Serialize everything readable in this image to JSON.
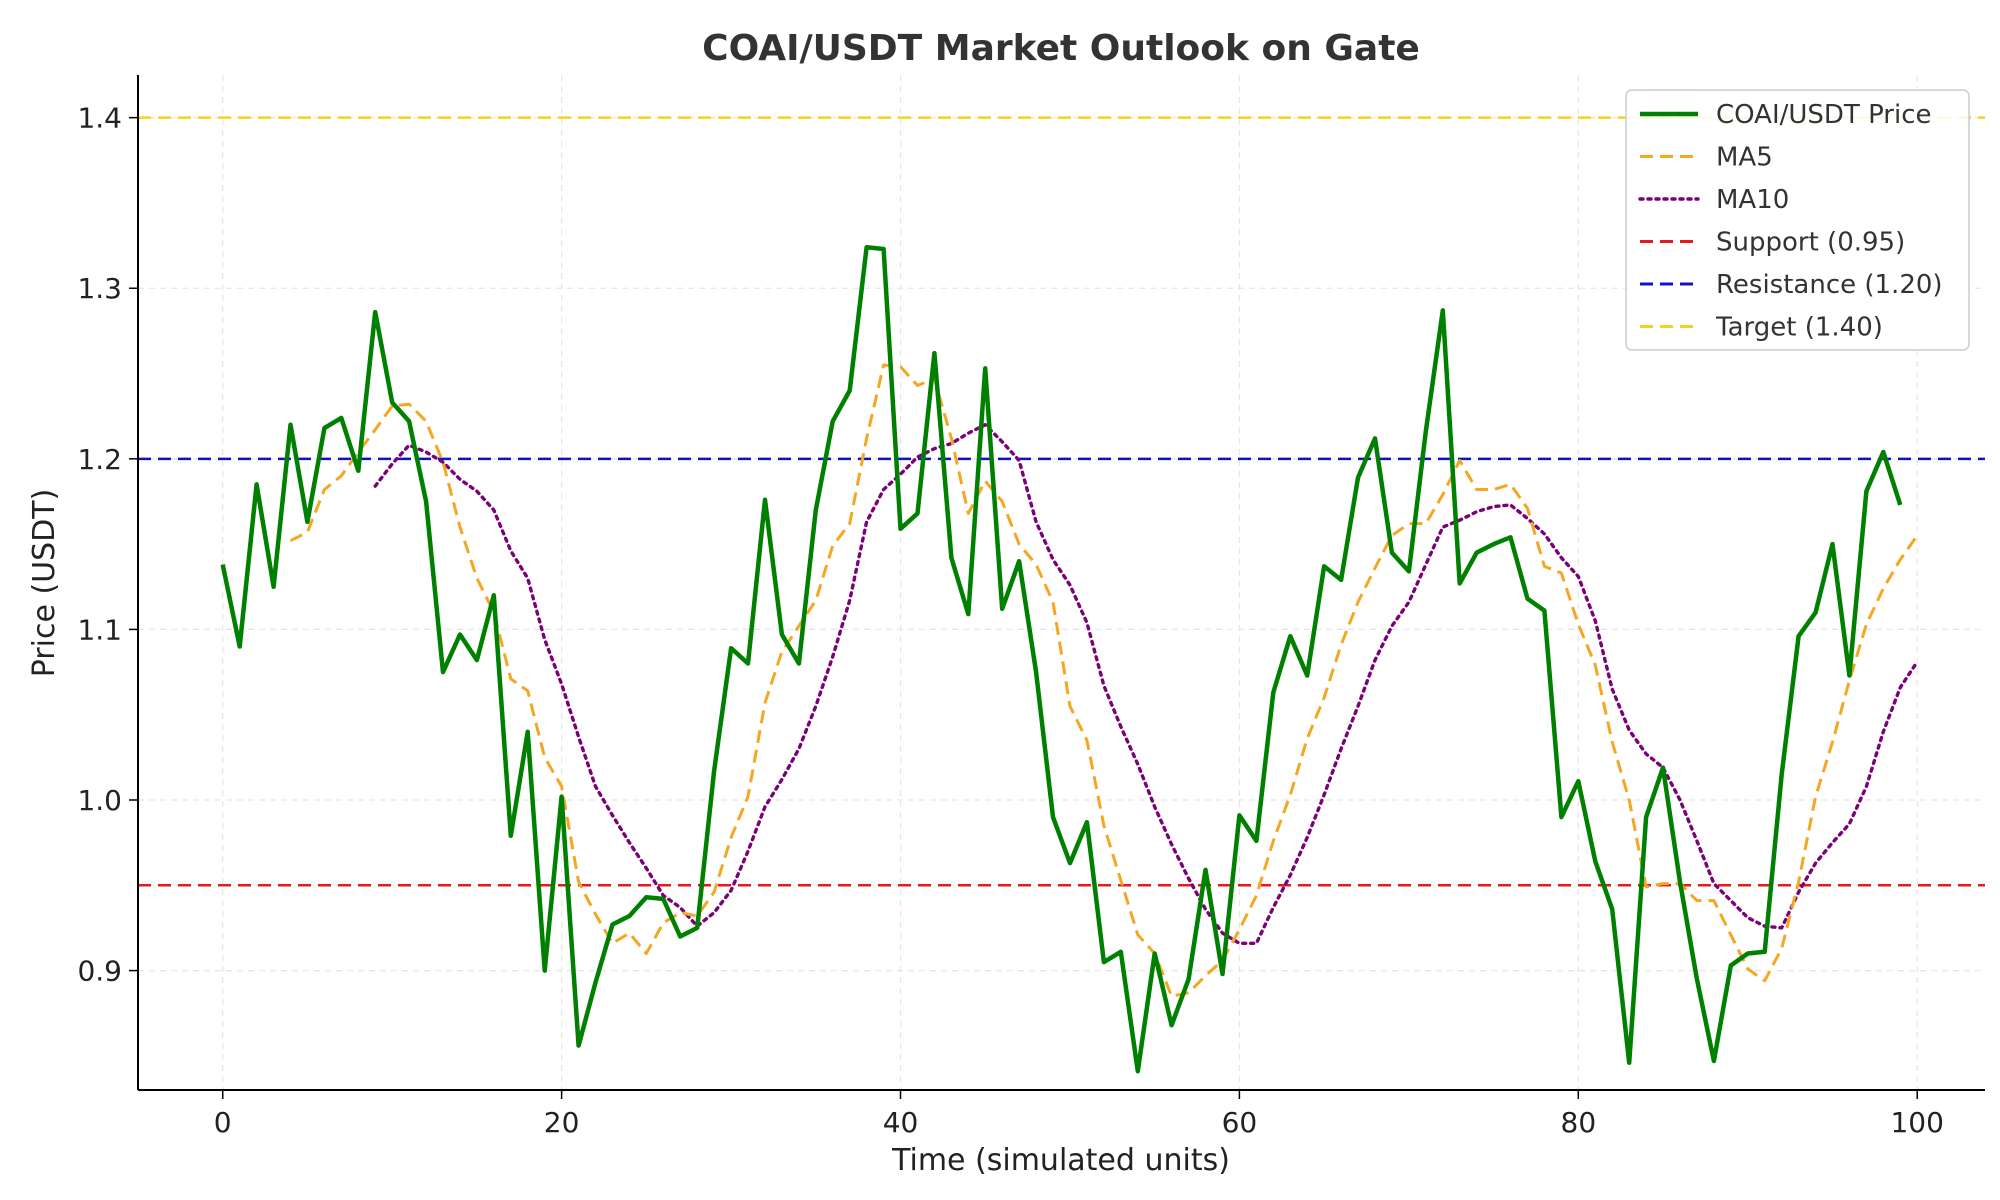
{
  "chart_data": {
    "type": "line",
    "title": "COAI/USDT Market Outlook on Gate",
    "xlabel": "Time (simulated units)",
    "ylabel": "Price (USDT)",
    "xlim": [
      -5,
      104
    ],
    "ylim": [
      0.83,
      1.425
    ],
    "xticks": [
      "0",
      "20",
      "40",
      "60",
      "80",
      "100"
    ],
    "xtick_values": [
      0,
      20,
      40,
      60,
      80,
      100
    ],
    "yticks": [
      "0.9",
      "1.0",
      "1.1",
      "1.2",
      "1.3",
      "1.4"
    ],
    "ytick_values": [
      0.9,
      1.0,
      1.1,
      1.2,
      1.3,
      1.4
    ],
    "grid": true,
    "legend_position": "top-right",
    "series": [
      {
        "name": "COAI/USDT Price",
        "color": "#008000",
        "style": "solid",
        "x_start": 0,
        "values": [
          1.138,
          1.09,
          1.185,
          1.125,
          1.22,
          1.163,
          1.218,
          1.224,
          1.193,
          1.286,
          1.233,
          1.222,
          1.175,
          1.075,
          1.097,
          1.082,
          1.12,
          0.979,
          1.04,
          0.9,
          1.002,
          0.856,
          0.893,
          0.927,
          0.932,
          0.943,
          0.942,
          0.92,
          0.925,
          1.017,
          1.089,
          1.08,
          1.176,
          1.097,
          1.08,
          1.17,
          1.222,
          1.24,
          1.324,
          1.323,
          1.159,
          1.168,
          1.262,
          1.142,
          1.109,
          1.253,
          1.112,
          1.14,
          1.075,
          0.99,
          0.963,
          0.987,
          0.905,
          0.911,
          0.841,
          0.91,
          0.868,
          0.895,
          0.959,
          0.898,
          0.991,
          0.976,
          1.063,
          1.096,
          1.073,
          1.137,
          1.129,
          1.189,
          1.212,
          1.145,
          1.134,
          1.216,
          1.287,
          1.127,
          1.145,
          1.15,
          1.154,
          1.118,
          1.111,
          0.99,
          1.011,
          0.964,
          0.936,
          0.846,
          0.99,
          1.019,
          0.952,
          0.895,
          0.847,
          0.903,
          0.91,
          0.911,
          1.015,
          1.096,
          1.11,
          1.15,
          1.073,
          1.181,
          1.204,
          1.173
        ]
      },
      {
        "name": "MA5",
        "color": "#f5a623",
        "style": "dashed",
        "x_start": 4,
        "values": [
          1.152,
          1.157,
          1.182,
          1.19,
          1.204,
          1.217,
          1.231,
          1.232,
          1.222,
          1.198,
          1.16,
          1.13,
          1.11,
          1.071,
          1.064,
          1.025,
          1.008,
          0.952,
          0.933,
          0.916,
          0.922,
          0.91,
          0.928,
          0.934,
          0.932,
          0.946,
          0.978,
          1.002,
          1.057,
          1.087,
          1.102,
          1.117,
          1.149,
          1.162,
          1.212,
          1.255,
          1.254,
          1.243,
          1.247,
          1.212,
          1.168,
          1.187,
          1.175,
          1.15,
          1.138,
          1.116,
          1.055,
          1.035,
          0.985,
          0.953,
          0.921,
          0.91,
          0.885,
          0.887,
          0.897,
          0.906,
          0.924,
          0.944,
          0.976,
          1.003,
          1.036,
          1.06,
          1.091,
          1.116,
          1.136,
          1.155,
          1.162,
          1.162,
          1.179,
          1.199,
          1.182,
          1.182,
          1.185,
          1.171,
          1.137,
          1.133,
          1.103,
          1.079,
          1.034,
          1.0,
          0.949,
          0.951,
          0.951,
          0.941,
          0.941,
          0.921,
          0.901,
          0.894,
          0.913,
          0.952,
          1.002,
          1.034,
          1.07,
          1.103,
          1.124,
          1.141,
          1.155
        ]
      },
      {
        "name": "MA10",
        "color": "#7a0177",
        "style": "dotted",
        "x_start": 9,
        "values": [
          1.184,
          1.197,
          1.208,
          1.204,
          1.198,
          1.188,
          1.181,
          1.17,
          1.146,
          1.13,
          1.094,
          1.068,
          1.037,
          1.008,
          0.991,
          0.975,
          0.96,
          0.944,
          0.937,
          0.926,
          0.934,
          0.947,
          0.97,
          0.996,
          1.012,
          1.03,
          1.055,
          1.084,
          1.117,
          1.163,
          1.182,
          1.191,
          1.201,
          1.206,
          1.209,
          1.215,
          1.22,
          1.21,
          1.199,
          1.163,
          1.141,
          1.126,
          1.104,
          1.067,
          1.043,
          1.021,
          0.996,
          0.974,
          0.954,
          0.936,
          0.922,
          0.916,
          0.916,
          0.937,
          0.956,
          0.978,
          1.003,
          1.03,
          1.055,
          1.082,
          1.102,
          1.116,
          1.138,
          1.16,
          1.164,
          1.169,
          1.172,
          1.173,
          1.165,
          1.156,
          1.142,
          1.131,
          1.105,
          1.065,
          1.041,
          1.027,
          1.019,
          1.0,
          0.976,
          0.951,
          0.941,
          0.931,
          0.926,
          0.925,
          0.946,
          0.963,
          0.975,
          0.986,
          1.008,
          1.04,
          1.066,
          1.081
        ]
      },
      {
        "name": "Support (0.95)",
        "color": "#e41a1c",
        "style": "dashed",
        "hline": 0.95
      },
      {
        "name": "Resistance (1.20)",
        "color": "#1010c8",
        "style": "dashed",
        "hline": 1.2
      },
      {
        "name": "Target (1.40)",
        "color": "#f4d21f",
        "style": "dashed",
        "hline": 1.4
      }
    ]
  }
}
